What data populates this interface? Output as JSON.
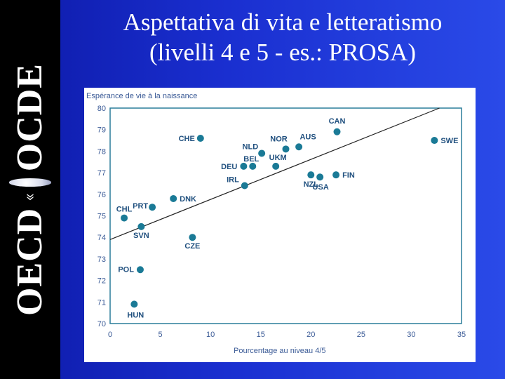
{
  "header": {
    "title_line1": "Aspettativa di vita e letteratismo",
    "title_line2": "(livelli 4 e 5 - es.: PROSA)"
  },
  "sidebar": {
    "logo_text_left": "OECD",
    "logo_text_right": "OCDE",
    "logo_icon": "oecd-globe-logo"
  },
  "colors": {
    "background": "#1a2fd0",
    "point": "#1a7a96",
    "axis_text": "#3a5a96",
    "trend_line": "#222222"
  },
  "chart_data": {
    "type": "scatter",
    "ylabel": "Espérance de vie à la naissance",
    "xlabel": "Pourcentage au niveau  4/5",
    "xlim": [
      0,
      35
    ],
    "ylim": [
      70,
      80
    ],
    "xticks": [
      0,
      5,
      10,
      15,
      20,
      25,
      30,
      35
    ],
    "yticks": [
      70,
      71,
      72,
      73,
      74,
      75,
      76,
      77,
      78,
      79,
      80
    ],
    "grid": false,
    "points": [
      {
        "label": "CAN",
        "x": 22.6,
        "y": 78.9
      },
      {
        "label": "SWE",
        "x": 32.3,
        "y": 78.5
      },
      {
        "label": "CHE",
        "x": 9.0,
        "y": 78.6
      },
      {
        "label": "NOR",
        "x": 17.5,
        "y": 78.1
      },
      {
        "label": "AUS",
        "x": 18.8,
        "y": 78.2
      },
      {
        "label": "NLD",
        "x": 15.1,
        "y": 77.9
      },
      {
        "label": "BEL",
        "x": 14.2,
        "y": 77.3
      },
      {
        "label": "DEU",
        "x": 13.3,
        "y": 77.3
      },
      {
        "label": "UKM",
        "x": 16.5,
        "y": 77.3
      },
      {
        "label": "NZL",
        "x": 20.0,
        "y": 76.9
      },
      {
        "label": "USA",
        "x": 20.9,
        "y": 76.8
      },
      {
        "label": "FIN",
        "x": 22.5,
        "y": 76.9
      },
      {
        "label": "IRL",
        "x": 13.4,
        "y": 76.4
      },
      {
        "label": "DNK",
        "x": 6.3,
        "y": 75.8
      },
      {
        "label": "PRT",
        "x": 4.2,
        "y": 75.4
      },
      {
        "label": "CHL",
        "x": 1.4,
        "y": 74.9
      },
      {
        "label": "SVN",
        "x": 3.1,
        "y": 74.5
      },
      {
        "label": "CZE",
        "x": 8.2,
        "y": 74.0
      },
      {
        "label": "POL",
        "x": 3.0,
        "y": 72.5
      },
      {
        "label": "HUN",
        "x": 2.4,
        "y": 70.9
      }
    ],
    "trend_line": {
      "x": [
        0,
        32.8
      ],
      "y": [
        73.9,
        80.0
      ]
    }
  }
}
